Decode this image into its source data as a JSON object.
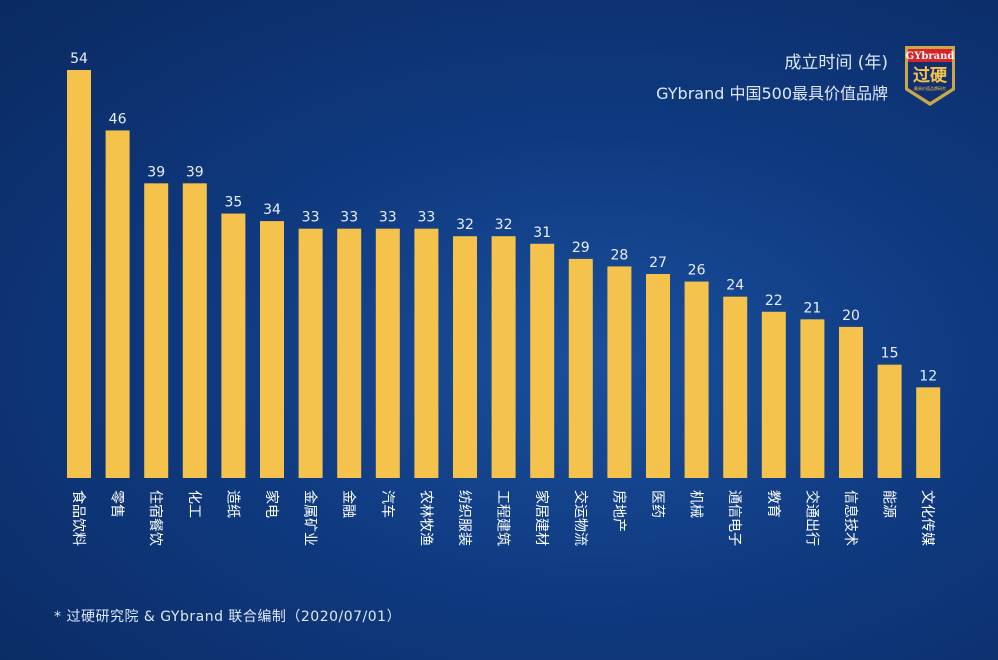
{
  "chart_data": {
    "type": "bar",
    "title": "成立时间 (年)",
    "subtitle": "GYbrand 中国500最具价值品牌",
    "categories": [
      "食品饮料",
      "零售",
      "住宿餐饮",
      "化工",
      "造纸",
      "家电",
      "金属矿业",
      "金融",
      "汽车",
      "农林牧渔",
      "纺织服装",
      "工程建筑",
      "家居建材",
      "交运物流",
      "房地产",
      "医药",
      "机械",
      "通信电子",
      "教育",
      "交通出行",
      "信息技术",
      "能源",
      "文化传媒"
    ],
    "values": [
      54,
      46,
      39,
      39,
      35,
      34,
      33,
      33,
      33,
      33,
      32,
      32,
      31,
      29,
      28,
      27,
      26,
      24,
      22,
      21,
      20,
      15,
      12
    ],
    "ylim": [
      0,
      54
    ],
    "grid": false,
    "colors": {
      "bar": "#f5c24c"
    }
  },
  "footer": "* 过硬研究院 & GYbrand 联合编制（2020/07/01）",
  "logo": {
    "brand": "GYbrand",
    "mark": "过硬",
    "tagline": "最具价值品牌研究"
  }
}
